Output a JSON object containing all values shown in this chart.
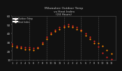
{
  "title": "Milwaukee Outdoor Temp\nvs Heat Index\n(24 Hours)",
  "title_fontsize": 3.2,
  "background_color": "#111111",
  "plot_bg_color": "#111111",
  "grid_color": "#555555",
  "text_color": "#cccccc",
  "ylim": [
    10,
    60
  ],
  "xlim": [
    0,
    24
  ],
  "ytick_vals": [
    10,
    20,
    30,
    40,
    50,
    60
  ],
  "ytick_labels": [
    "10",
    "20",
    "30",
    "40",
    "50",
    "60"
  ],
  "xtick_vals": [
    0,
    1,
    2,
    3,
    4,
    5,
    6,
    7,
    8,
    9,
    10,
    11,
    12,
    13,
    14,
    15,
    16,
    17,
    18,
    19,
    20,
    21,
    22,
    23
  ],
  "xtick_labels": [
    "1",
    "2",
    "3",
    "4",
    "5",
    "6",
    "7",
    "8",
    "9",
    "10",
    "11",
    "12",
    "1",
    "2",
    "3",
    "4",
    "5",
    "6",
    "7",
    "8",
    "9",
    "10",
    "11",
    "12"
  ],
  "temp_x": [
    0,
    1,
    2,
    3,
    4,
    5,
    6,
    7,
    8,
    9,
    10,
    11,
    12,
    13,
    14,
    15,
    16,
    17,
    18,
    19,
    20,
    21,
    22,
    23
  ],
  "temp_y": [
    28,
    26,
    25,
    24,
    24,
    23,
    24,
    30,
    36,
    41,
    44,
    47,
    49,
    50,
    49,
    47,
    44,
    40,
    36,
    31,
    25,
    18,
    13,
    11
  ],
  "heat_x": [
    0,
    1,
    2,
    3,
    4,
    5,
    6,
    7,
    8,
    9,
    10,
    11,
    12,
    13,
    14,
    15,
    16,
    17,
    18,
    19,
    20,
    21,
    22,
    23
  ],
  "heat_y": [
    26,
    24,
    23,
    22,
    22,
    21,
    23,
    28,
    34,
    39,
    42,
    45,
    47,
    48,
    47,
    45,
    43,
    38,
    34,
    29,
    29,
    26,
    21,
    17
  ],
  "temp_color": "#dd2222",
  "heat_color": "#ff8800",
  "dot_size": 2.5,
  "vgrid_positions": [
    4,
    8,
    12,
    16,
    20
  ],
  "legend_labels": [
    "Outdoor Temp",
    "Heat Index"
  ]
}
